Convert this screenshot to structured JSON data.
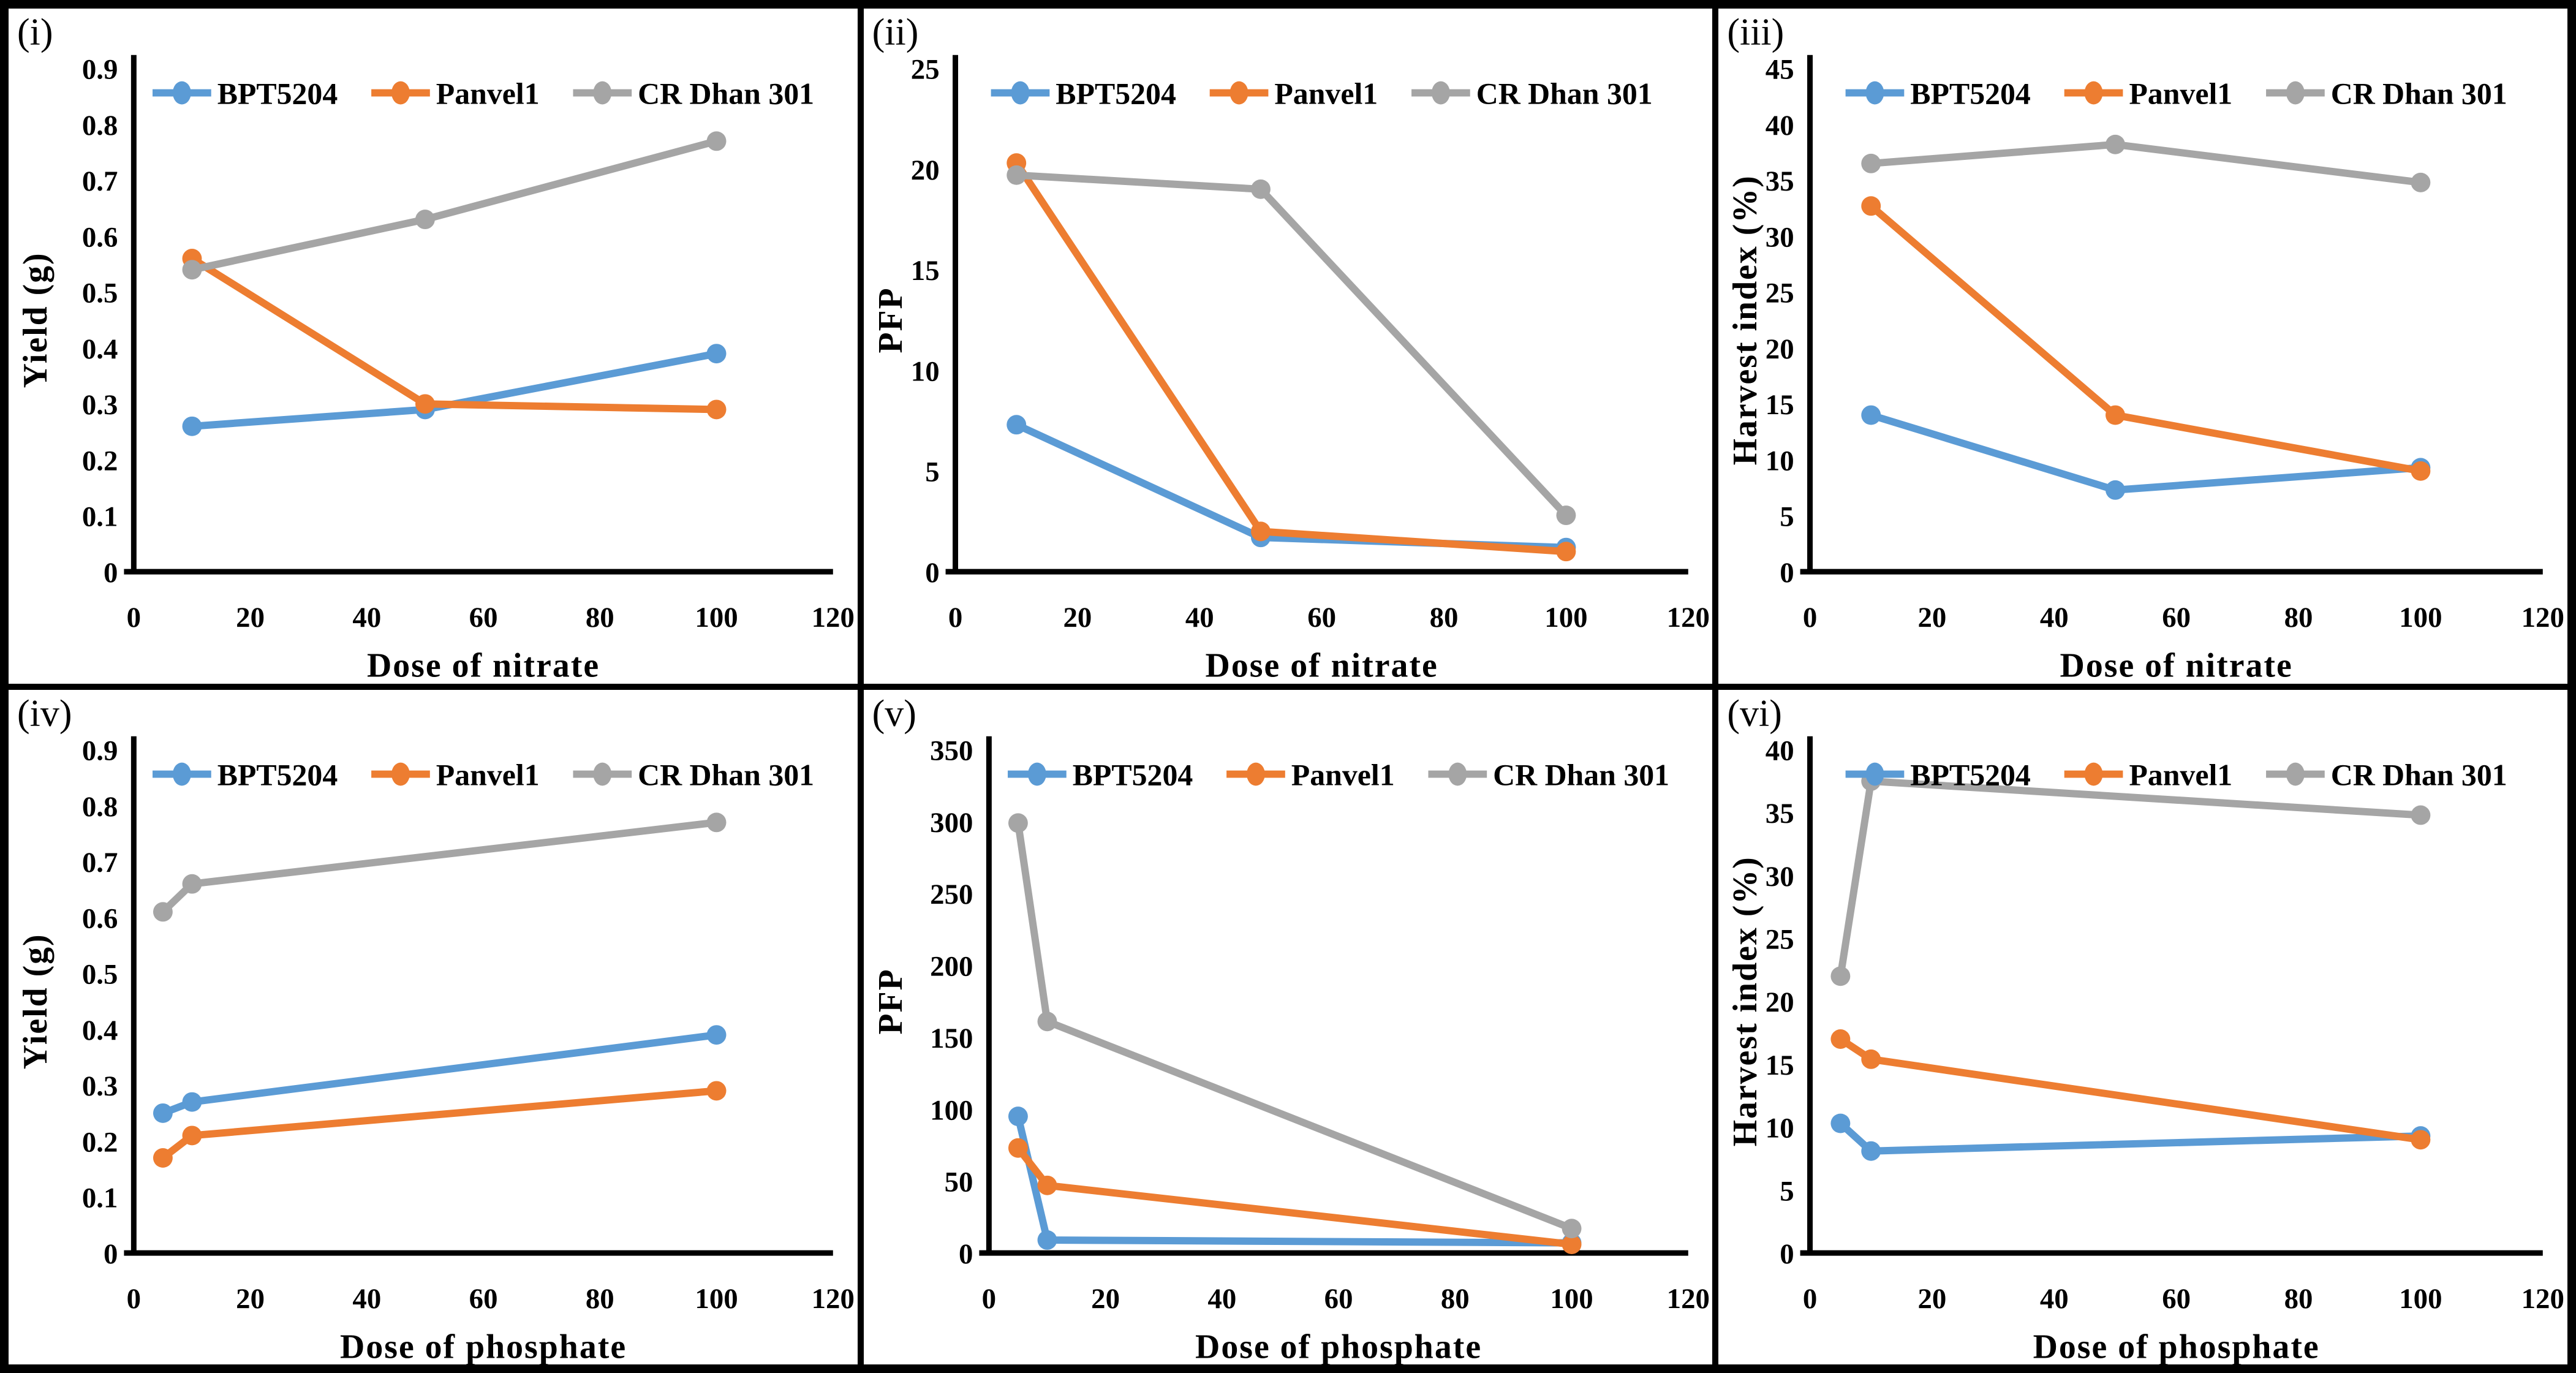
{
  "figure": {
    "description": "Six-panel line chart figure",
    "series_colors": {
      "BPT5204": "#5B9BD5",
      "Panvel1": "#ED7D31",
      "CR Dhan 301": "#A5A5A5"
    },
    "axis_color": "#000000",
    "background": "#ffffff"
  },
  "legend": {
    "items": [
      "BPT5204",
      "Panvel1",
      "CR Dhan 301"
    ],
    "position": "top-center"
  },
  "chart_data": [
    {
      "panel_label": "(i)",
      "type": "line",
      "xlabel": "Dose of nitrate",
      "ylabel": "Yield (g)",
      "xlim": [
        0,
        120
      ],
      "ylim": [
        0,
        0.9
      ],
      "xticks": [
        0,
        20,
        40,
        60,
        80,
        100,
        120
      ],
      "ytick_labels": [
        "0",
        "0.1",
        "0.2",
        "0.3",
        "0.4",
        "0.5",
        "0.6",
        "0.7",
        "0.8",
        "0.9"
      ],
      "grid": false,
      "legend_position": "top-center",
      "x": [
        10,
        50,
        100
      ],
      "series": [
        {
          "name": "BPT5204",
          "color": "#5B9BD5",
          "values": [
            0.26,
            0.29,
            0.39
          ]
        },
        {
          "name": "Panvel1",
          "color": "#ED7D31",
          "values": [
            0.56,
            0.3,
            0.29
          ]
        },
        {
          "name": "CR Dhan 301",
          "color": "#A5A5A5",
          "values": [
            0.54,
            0.63,
            0.77
          ]
        }
      ]
    },
    {
      "panel_label": "(ii)",
      "type": "line",
      "xlabel": "Dose of nitrate",
      "ylabel": "PFP",
      "xlim": [
        0,
        120
      ],
      "ylim": [
        0,
        25
      ],
      "xticks": [
        0,
        20,
        40,
        60,
        80,
        100,
        120
      ],
      "ytick_labels": [
        "0",
        "5",
        "10",
        "15",
        "20",
        "25"
      ],
      "grid": false,
      "legend_position": "top-center",
      "x": [
        10,
        50,
        100
      ],
      "series": [
        {
          "name": "BPT5204",
          "color": "#5B9BD5",
          "values": [
            7.3,
            1.7,
            1.2
          ]
        },
        {
          "name": "Panvel1",
          "color": "#ED7D31",
          "values": [
            20.3,
            2.0,
            1.0
          ]
        },
        {
          "name": "CR Dhan 301",
          "color": "#A5A5A5",
          "values": [
            19.7,
            19.0,
            2.8
          ]
        }
      ]
    },
    {
      "panel_label": "(iii)",
      "type": "line",
      "xlabel": "Dose of nitrate",
      "ylabel": "Harvest index (%)",
      "xlim": [
        0,
        120
      ],
      "ylim": [
        0,
        45
      ],
      "xticks": [
        0,
        20,
        40,
        60,
        80,
        100,
        120
      ],
      "ytick_labels": [
        "0",
        "5",
        "10",
        "15",
        "20",
        "25",
        "30",
        "35",
        "40",
        "45"
      ],
      "grid": false,
      "legend_position": "top-center",
      "x": [
        10,
        50,
        100
      ],
      "series": [
        {
          "name": "BPT5204",
          "color": "#5B9BD5",
          "values": [
            14.0,
            7.3,
            9.3
          ]
        },
        {
          "name": "Panvel1",
          "color": "#ED7D31",
          "values": [
            32.7,
            14.0,
            9.0
          ]
        },
        {
          "name": "CR Dhan 301",
          "color": "#A5A5A5",
          "values": [
            36.5,
            38.2,
            34.8
          ]
        }
      ]
    },
    {
      "panel_label": "(iv)",
      "type": "line",
      "xlabel": "Dose of phosphate",
      "ylabel": "Yield (g)",
      "xlim": [
        0,
        120
      ],
      "ylim": [
        0,
        0.9
      ],
      "xticks": [
        0,
        20,
        40,
        60,
        80,
        100,
        120
      ],
      "ytick_labels": [
        "0",
        "0.1",
        "0.2",
        "0.3",
        "0.4",
        "0.5",
        "0.6",
        "0.7",
        "0.8",
        "0.9"
      ],
      "grid": false,
      "legend_position": "top-center",
      "x": [
        5,
        10,
        100
      ],
      "series": [
        {
          "name": "BPT5204",
          "color": "#5B9BD5",
          "values": [
            0.25,
            0.27,
            0.39
          ]
        },
        {
          "name": "Panvel1",
          "color": "#ED7D31",
          "values": [
            0.17,
            0.21,
            0.29
          ]
        },
        {
          "name": "CR Dhan 301",
          "color": "#A5A5A5",
          "values": [
            0.61,
            0.66,
            0.77
          ]
        }
      ]
    },
    {
      "panel_label": "(v)",
      "type": "line",
      "xlabel": "Dose of phosphate",
      "ylabel": "PFP",
      "xlim": [
        0,
        120
      ],
      "ylim": [
        0,
        350
      ],
      "xticks": [
        0,
        20,
        40,
        60,
        80,
        100,
        120
      ],
      "ytick_labels": [
        "0",
        "50",
        "100",
        "150",
        "200",
        "250",
        "300",
        "350"
      ],
      "grid": false,
      "legend_position": "top-center",
      "x": [
        5,
        10,
        100
      ],
      "series": [
        {
          "name": "BPT5204",
          "color": "#5B9BD5",
          "values": [
            95,
            9,
            7
          ]
        },
        {
          "name": "Panvel1",
          "color": "#ED7D31",
          "values": [
            73,
            47,
            6
          ]
        },
        {
          "name": "CR Dhan 301",
          "color": "#A5A5A5",
          "values": [
            299,
            161,
            17
          ]
        }
      ]
    },
    {
      "panel_label": "(vi)",
      "type": "line",
      "xlabel": "Dose of phosphate",
      "ylabel": "Harvest index (%)",
      "xlim": [
        0,
        120
      ],
      "ylim": [
        0,
        40
      ],
      "xticks": [
        0,
        20,
        40,
        60,
        80,
        100,
        120
      ],
      "ytick_labels": [
        "0",
        "5",
        "10",
        "15",
        "20",
        "25",
        "30",
        "35",
        "40"
      ],
      "grid": false,
      "legend_position": "top-center",
      "x": [
        5,
        10,
        100
      ],
      "series": [
        {
          "name": "BPT5204",
          "color": "#5B9BD5",
          "values": [
            10.3,
            8.1,
            9.3
          ]
        },
        {
          "name": "Panvel1",
          "color": "#ED7D31",
          "values": [
            17.0,
            15.4,
            9.0
          ]
        },
        {
          "name": "CR Dhan 301",
          "color": "#A5A5A5",
          "values": [
            22.0,
            37.5,
            34.8
          ]
        }
      ]
    }
  ]
}
